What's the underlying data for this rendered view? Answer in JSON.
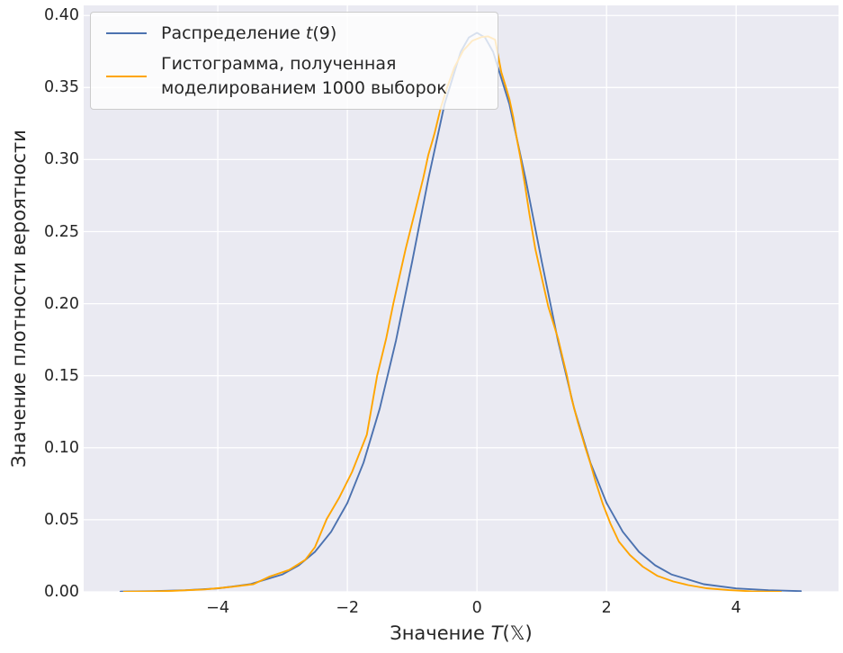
{
  "figure": {
    "background": "#ffffff",
    "axes_background": "#EAEAF2",
    "grid_color": "#ffffff",
    "text_color": "#262626"
  },
  "legend": {
    "position": "upper left",
    "items": [
      {
        "prefix": "Распределение ",
        "math": "t",
        "suffix": "(9)",
        "color": "#4C72B0"
      },
      {
        "label": "Гистограмма, полученная\nмоделированием 1000 выборок",
        "color": "#FFA500"
      }
    ]
  },
  "axes": {
    "xlabel": {
      "prefix": "Значение ",
      "math": "T",
      "suffix": "(𝕏)"
    },
    "ylabel": "Значение плотности вероятности",
    "x_ticks": [
      {
        "value": -4,
        "label": "−4"
      },
      {
        "value": -2,
        "label": "−2"
      },
      {
        "value": 0,
        "label": "0"
      },
      {
        "value": 2,
        "label": "2"
      },
      {
        "value": 4,
        "label": "4"
      }
    ],
    "y_ticks": [
      {
        "value": 0.0,
        "label": "0.00"
      },
      {
        "value": 0.05,
        "label": "0.05"
      },
      {
        "value": 0.1,
        "label": "0.10"
      },
      {
        "value": 0.15,
        "label": "0.15"
      },
      {
        "value": 0.2,
        "label": "0.20"
      },
      {
        "value": 0.25,
        "label": "0.25"
      },
      {
        "value": 0.3,
        "label": "0.30"
      },
      {
        "value": 0.35,
        "label": "0.35"
      },
      {
        "value": 0.4,
        "label": "0.40"
      }
    ]
  },
  "chart_data": {
    "type": "line",
    "title": "",
    "xlabel": "Значение T(𝕏)",
    "ylabel": "Значение плотности вероятности",
    "xlim": [
      -6.07,
      5.58
    ],
    "ylim": [
      0,
      0.407
    ],
    "grid": true,
    "legend_position": "upper left",
    "series": [
      {
        "name": "Распределение t(9)",
        "color": "#4C72B0",
        "points": [
          [
            -5.5,
            0.0002
          ],
          [
            -5.0,
            0.0005
          ],
          [
            -4.5,
            0.0011
          ],
          [
            -4.0,
            0.0024
          ],
          [
            -3.5,
            0.0053
          ],
          [
            -3.0,
            0.0121
          ],
          [
            -2.75,
            0.0184
          ],
          [
            -2.5,
            0.0278
          ],
          [
            -2.25,
            0.0417
          ],
          [
            -2.0,
            0.0617
          ],
          [
            -1.75,
            0.0897
          ],
          [
            -1.5,
            0.1272
          ],
          [
            -1.25,
            0.1743
          ],
          [
            -1.0,
            0.2291
          ],
          [
            -0.75,
            0.2866
          ],
          [
            -0.5,
            0.3384
          ],
          [
            -0.25,
            0.3748
          ],
          [
            -0.125,
            0.3847
          ],
          [
            0.0,
            0.388
          ],
          [
            0.125,
            0.3847
          ],
          [
            0.25,
            0.3748
          ],
          [
            0.5,
            0.3384
          ],
          [
            0.75,
            0.2866
          ],
          [
            1.0,
            0.2291
          ],
          [
            1.25,
            0.1743
          ],
          [
            1.5,
            0.1272
          ],
          [
            1.75,
            0.0897
          ],
          [
            2.0,
            0.0617
          ],
          [
            2.25,
            0.0417
          ],
          [
            2.5,
            0.0278
          ],
          [
            2.75,
            0.0184
          ],
          [
            3.0,
            0.0121
          ],
          [
            3.5,
            0.0053
          ],
          [
            4.0,
            0.0024
          ],
          [
            4.5,
            0.0011
          ],
          [
            5.0,
            0.0005
          ]
        ]
      },
      {
        "name": "Гистограмма, полученная моделированием 1000 выборок",
        "color": "#FFA500",
        "points": [
          [
            -5.45,
            0.0001
          ],
          [
            -5.0,
            0.0004
          ],
          [
            -4.7,
            0.0007
          ],
          [
            -4.2,
            0.0017
          ],
          [
            -3.8,
            0.0034
          ],
          [
            -3.45,
            0.0053
          ],
          [
            -3.2,
            0.0106
          ],
          [
            -2.9,
            0.0152
          ],
          [
            -2.65,
            0.0222
          ],
          [
            -2.5,
            0.031
          ],
          [
            -2.32,
            0.0505
          ],
          [
            -2.13,
            0.065
          ],
          [
            -1.93,
            0.083
          ],
          [
            -1.7,
            0.109
          ],
          [
            -1.54,
            0.15
          ],
          [
            -1.4,
            0.176
          ],
          [
            -1.29,
            0.2
          ],
          [
            -1.1,
            0.238
          ],
          [
            -0.95,
            0.265
          ],
          [
            -0.83,
            0.287
          ],
          [
            -0.79,
            0.2952
          ],
          [
            -0.75,
            0.3033
          ],
          [
            -0.69,
            0.3126
          ],
          [
            -0.65,
            0.3189
          ],
          [
            -0.56,
            0.3357
          ],
          [
            -0.46,
            0.3501
          ],
          [
            -0.35,
            0.3638
          ],
          [
            -0.21,
            0.3757
          ],
          [
            -0.07,
            0.3825
          ],
          [
            0.07,
            0.385
          ],
          [
            0.17,
            0.3855
          ],
          [
            0.28,
            0.3832
          ],
          [
            0.375,
            0.3607
          ],
          [
            0.44,
            0.3513
          ],
          [
            0.5,
            0.342
          ],
          [
            0.56,
            0.3295
          ],
          [
            0.61,
            0.3157
          ],
          [
            0.67,
            0.3014
          ],
          [
            0.74,
            0.2827
          ],
          [
            0.81,
            0.262
          ],
          [
            0.9,
            0.238
          ],
          [
            1.0,
            0.218
          ],
          [
            1.1,
            0.198
          ],
          [
            1.25,
            0.176
          ],
          [
            1.39,
            0.15
          ],
          [
            1.46,
            0.1342
          ],
          [
            1.56,
            0.1173
          ],
          [
            1.67,
            0.1005
          ],
          [
            1.75,
            0.0892
          ],
          [
            1.83,
            0.0767
          ],
          [
            1.94,
            0.0612
          ],
          [
            2.06,
            0.0474
          ],
          [
            2.19,
            0.0349
          ],
          [
            2.36,
            0.0256
          ],
          [
            2.56,
            0.0175
          ],
          [
            2.78,
            0.0112
          ],
          [
            3.03,
            0.0072
          ],
          [
            3.26,
            0.0047
          ],
          [
            3.54,
            0.0025
          ],
          [
            3.89,
            0.0012
          ],
          [
            4.24,
            0.0004
          ],
          [
            4.51,
            0.0001
          ],
          [
            4.69,
            0.0
          ]
        ]
      }
    ]
  }
}
